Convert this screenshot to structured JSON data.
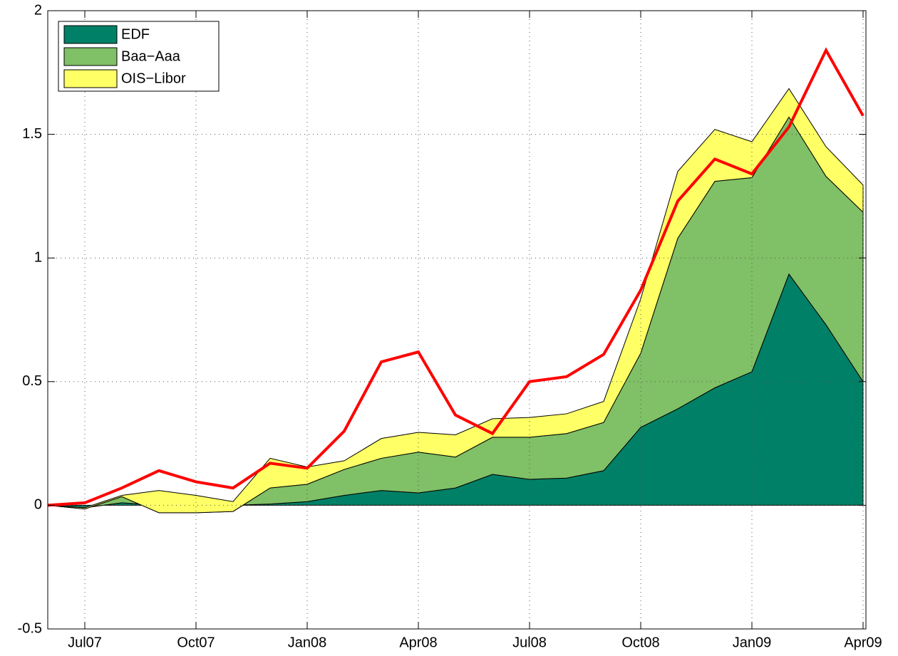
{
  "chart_data": {
    "type": "stacked-area",
    "categories": [
      null,
      "Jul07",
      null,
      null,
      "Oct07",
      null,
      null,
      "Jan08",
      null,
      null,
      "Apr08",
      null,
      null,
      "Jul08",
      null,
      null,
      "Oct08",
      null,
      null,
      "Jan09",
      null,
      null,
      "Apr09"
    ],
    "series": [
      {
        "name": "EDF",
        "color": "#008066",
        "values": [
          0,
          -0.01,
          0.01,
          0,
          0,
          0,
          0.005,
          0.015,
          0.04,
          0.06,
          0.05,
          0.07,
          0.125,
          0.105,
          0.11,
          0.14,
          0.315,
          0.39,
          0.475,
          0.54,
          0.935,
          0.73,
          0.5
        ]
      },
      {
        "name": "Baa−Aaa",
        "color": "#80c066",
        "values": [
          0,
          -0.005,
          0.025,
          -0.03,
          -0.03,
          -0.025,
          0.065,
          0.07,
          0.105,
          0.13,
          0.165,
          0.125,
          0.15,
          0.17,
          0.18,
          0.195,
          0.3,
          0.69,
          0.835,
          0.785,
          0.635,
          0.6,
          0.685
        ]
      },
      {
        "name": "OIS−Libor",
        "color": "#ffff66",
        "values": [
          0,
          0.005,
          0.005,
          0.09,
          0.07,
          0.04,
          0.12,
          0.07,
          0.035,
          0.08,
          0.08,
          0.09,
          0.075,
          0.08,
          0.08,
          0.085,
          0.22,
          0.27,
          0.21,
          0.145,
          0.115,
          0.12,
          0.11
        ]
      }
    ],
    "line": {
      "color": "#ff0000",
      "values": [
        0,
        0.01,
        0.07,
        0.14,
        0.095,
        0.07,
        0.17,
        0.15,
        0.3,
        0.58,
        0.62,
        0.365,
        0.29,
        0.5,
        0.52,
        0.61,
        0.87,
        1.23,
        1.4,
        1.34,
        1.53,
        1.84,
        1.575
      ]
    },
    "ylim": [
      -0.5,
      2
    ],
    "yticks": [
      -0.5,
      0,
      0.5,
      1,
      1.5,
      2
    ],
    "grid": true,
    "legend": "upper-left"
  }
}
